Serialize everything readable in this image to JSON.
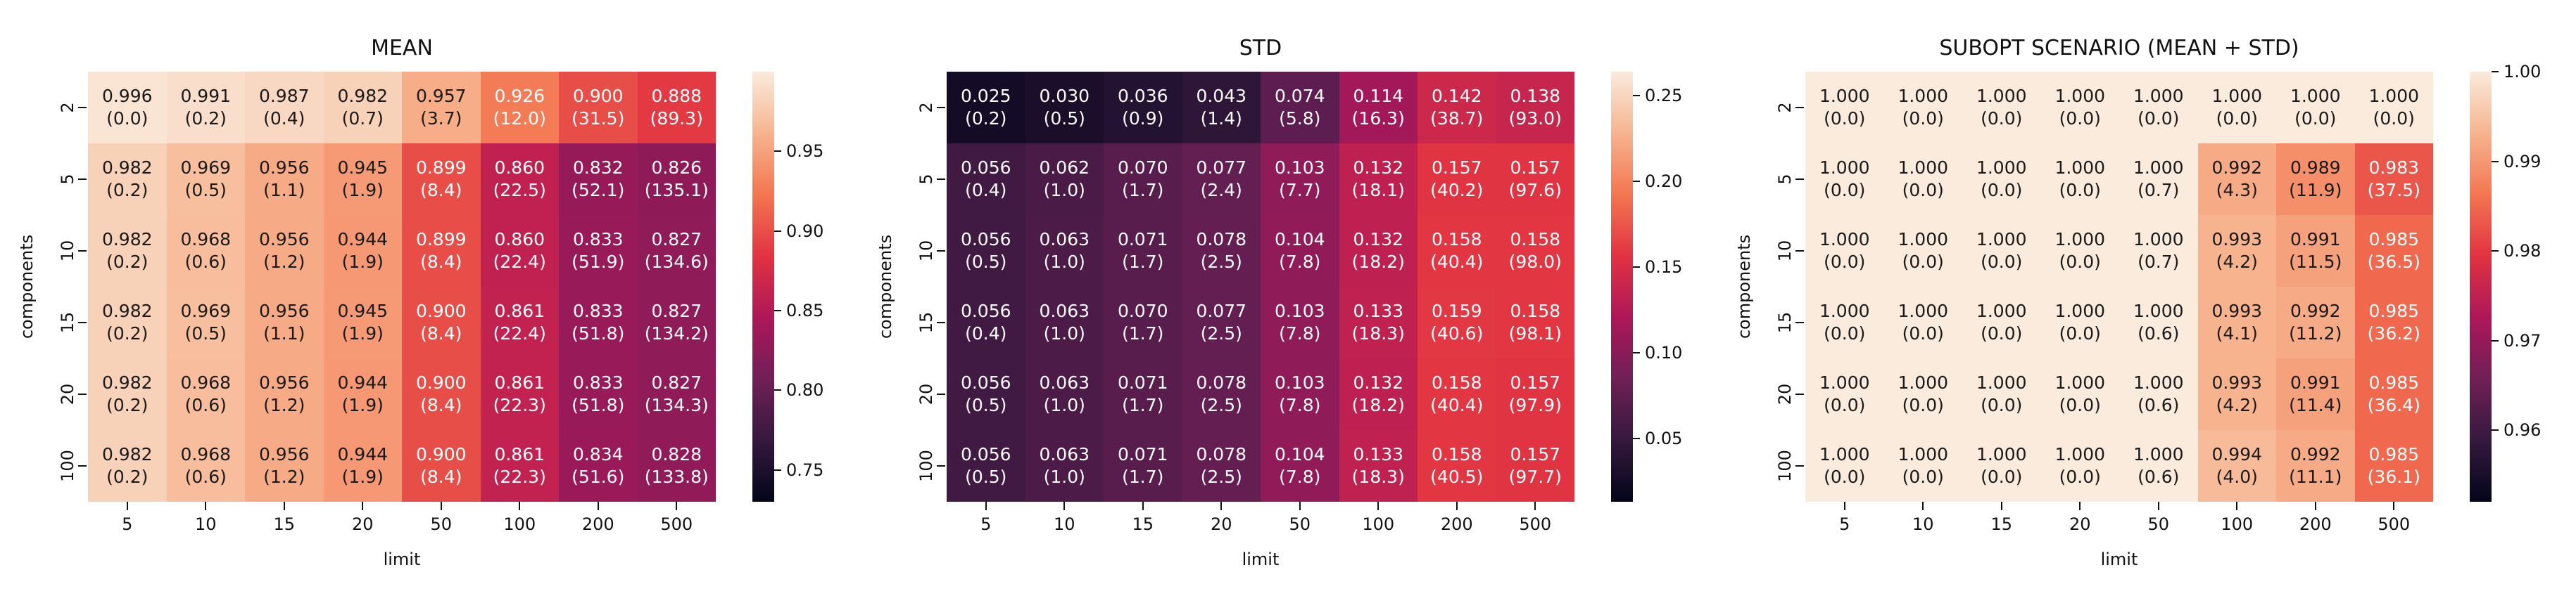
{
  "figure": {
    "background": "#ffffff",
    "colormap_name": "rocket",
    "colormap_stops": [
      "#03051A",
      "#35193E",
      "#701F57",
      "#AD1759",
      "#E13342",
      "#F37651",
      "#F6B48F",
      "#FAEBDD"
    ],
    "dark_text_color": "#1a1a1a",
    "light_text_color": "#ffffff",
    "axis_text_color": "#111111"
  },
  "chart_data": [
    {
      "type": "heatmap",
      "title": "MEAN",
      "xlabel": "limit",
      "ylabel": "components",
      "x_ticklabels": [
        "5",
        "10",
        "15",
        "20",
        "50",
        "100",
        "200",
        "500"
      ],
      "y_ticklabels": [
        "2",
        "5",
        "10",
        "15",
        "20",
        "100"
      ],
      "vmin": 0.73,
      "vmax": 1.0,
      "colorbar_ticks": [
        "0.95",
        "0.90",
        "0.85",
        "0.80",
        "0.75"
      ],
      "values": [
        [
          "0.996",
          "0.991",
          "0.987",
          "0.982",
          "0.957",
          "0.926",
          "0.900",
          "0.888"
        ],
        [
          "0.982",
          "0.969",
          "0.956",
          "0.945",
          "0.899",
          "0.860",
          "0.832",
          "0.826"
        ],
        [
          "0.982",
          "0.968",
          "0.956",
          "0.944",
          "0.899",
          "0.860",
          "0.833",
          "0.827"
        ],
        [
          "0.982",
          "0.969",
          "0.956",
          "0.945",
          "0.900",
          "0.861",
          "0.833",
          "0.827"
        ],
        [
          "0.982",
          "0.968",
          "0.956",
          "0.944",
          "0.900",
          "0.861",
          "0.833",
          "0.827"
        ],
        [
          "0.982",
          "0.968",
          "0.956",
          "0.944",
          "0.900",
          "0.861",
          "0.834",
          "0.828"
        ]
      ],
      "annotations": [
        [
          "(0.0)",
          "(0.2)",
          "(0.4)",
          "(0.7)",
          "(3.7)",
          "(12.0)",
          "(31.5)",
          "(89.3)"
        ],
        [
          "(0.2)",
          "(0.5)",
          "(1.1)",
          "(1.9)",
          "(8.4)",
          "(22.5)",
          "(52.1)",
          "(135.1)"
        ],
        [
          "(0.2)",
          "(0.6)",
          "(1.2)",
          "(1.9)",
          "(8.4)",
          "(22.4)",
          "(51.9)",
          "(134.6)"
        ],
        [
          "(0.2)",
          "(0.5)",
          "(1.1)",
          "(1.9)",
          "(8.4)",
          "(22.4)",
          "(51.8)",
          "(134.2)"
        ],
        [
          "(0.2)",
          "(0.6)",
          "(1.2)",
          "(1.9)",
          "(8.4)",
          "(22.3)",
          "(51.8)",
          "(134.3)"
        ],
        [
          "(0.2)",
          "(0.6)",
          "(1.2)",
          "(1.9)",
          "(8.4)",
          "(22.3)",
          "(51.6)",
          "(133.8)"
        ]
      ]
    },
    {
      "type": "heatmap",
      "title": "STD",
      "xlabel": "limit",
      "ylabel": "components",
      "x_ticklabels": [
        "5",
        "10",
        "15",
        "20",
        "50",
        "100",
        "200",
        "500"
      ],
      "y_ticklabels": [
        "2",
        "5",
        "10",
        "15",
        "20",
        "100"
      ],
      "vmin": 0.013,
      "vmax": 0.264,
      "colorbar_ticks": [
        "0.25",
        "0.20",
        "0.15",
        "0.10",
        "0.05"
      ],
      "values": [
        [
          "0.025",
          "0.030",
          "0.036",
          "0.043",
          "0.074",
          "0.114",
          "0.142",
          "0.138"
        ],
        [
          "0.056",
          "0.062",
          "0.070",
          "0.077",
          "0.103",
          "0.132",
          "0.157",
          "0.157"
        ],
        [
          "0.056",
          "0.063",
          "0.071",
          "0.078",
          "0.104",
          "0.132",
          "0.158",
          "0.158"
        ],
        [
          "0.056",
          "0.063",
          "0.070",
          "0.077",
          "0.103",
          "0.133",
          "0.159",
          "0.158"
        ],
        [
          "0.056",
          "0.063",
          "0.071",
          "0.078",
          "0.103",
          "0.132",
          "0.158",
          "0.157"
        ],
        [
          "0.056",
          "0.063",
          "0.071",
          "0.078",
          "0.104",
          "0.133",
          "0.158",
          "0.157"
        ]
      ],
      "annotations": [
        [
          "(0.2)",
          "(0.5)",
          "(0.9)",
          "(1.4)",
          "(5.8)",
          "(16.3)",
          "(38.7)",
          "(93.0)"
        ],
        [
          "(0.4)",
          "(1.0)",
          "(1.7)",
          "(2.4)",
          "(7.7)",
          "(18.1)",
          "(40.2)",
          "(97.6)"
        ],
        [
          "(0.5)",
          "(1.0)",
          "(1.7)",
          "(2.5)",
          "(7.8)",
          "(18.2)",
          "(40.4)",
          "(98.0)"
        ],
        [
          "(0.4)",
          "(1.0)",
          "(1.7)",
          "(2.5)",
          "(7.8)",
          "(18.3)",
          "(40.6)",
          "(98.1)"
        ],
        [
          "(0.5)",
          "(1.0)",
          "(1.7)",
          "(2.5)",
          "(7.8)",
          "(18.2)",
          "(40.4)",
          "(97.9)"
        ],
        [
          "(0.5)",
          "(1.0)",
          "(1.7)",
          "(2.5)",
          "(7.8)",
          "(18.3)",
          "(40.5)",
          "(97.7)"
        ]
      ]
    },
    {
      "type": "heatmap",
      "title": "SUBOPT SCENARIO (MEAN + STD)",
      "xlabel": "limit",
      "ylabel": "components",
      "x_ticklabels": [
        "5",
        "10",
        "15",
        "20",
        "50",
        "100",
        "200",
        "500"
      ],
      "y_ticklabels": [
        "2",
        "5",
        "10",
        "15",
        "20",
        "100"
      ],
      "vmin": 0.952,
      "vmax": 1.0,
      "colorbar_ticks": [
        "1.00",
        "0.99",
        "0.98",
        "0.97",
        "0.96"
      ],
      "values": [
        [
          "1.000",
          "1.000",
          "1.000",
          "1.000",
          "1.000",
          "1.000",
          "1.000",
          "1.000"
        ],
        [
          "1.000",
          "1.000",
          "1.000",
          "1.000",
          "1.000",
          "0.992",
          "0.989",
          "0.983"
        ],
        [
          "1.000",
          "1.000",
          "1.000",
          "1.000",
          "1.000",
          "0.993",
          "0.991",
          "0.985"
        ],
        [
          "1.000",
          "1.000",
          "1.000",
          "1.000",
          "1.000",
          "0.993",
          "0.992",
          "0.985"
        ],
        [
          "1.000",
          "1.000",
          "1.000",
          "1.000",
          "1.000",
          "0.993",
          "0.991",
          "0.985"
        ],
        [
          "1.000",
          "1.000",
          "1.000",
          "1.000",
          "1.000",
          "0.994",
          "0.992",
          "0.985"
        ]
      ],
      "annotations": [
        [
          "(0.0)",
          "(0.0)",
          "(0.0)",
          "(0.0)",
          "(0.0)",
          "(0.0)",
          "(0.0)",
          "(0.0)"
        ],
        [
          "(0.0)",
          "(0.0)",
          "(0.0)",
          "(0.0)",
          "(0.7)",
          "(4.3)",
          "(11.9)",
          "(37.5)"
        ],
        [
          "(0.0)",
          "(0.0)",
          "(0.0)",
          "(0.0)",
          "(0.7)",
          "(4.2)",
          "(11.5)",
          "(36.5)"
        ],
        [
          "(0.0)",
          "(0.0)",
          "(0.0)",
          "(0.0)",
          "(0.6)",
          "(4.1)",
          "(11.2)",
          "(36.2)"
        ],
        [
          "(0.0)",
          "(0.0)",
          "(0.0)",
          "(0.0)",
          "(0.6)",
          "(4.2)",
          "(11.4)",
          "(36.4)"
        ],
        [
          "(0.0)",
          "(0.0)",
          "(0.0)",
          "(0.0)",
          "(0.6)",
          "(4.0)",
          "(11.1)",
          "(36.1)"
        ]
      ]
    }
  ]
}
